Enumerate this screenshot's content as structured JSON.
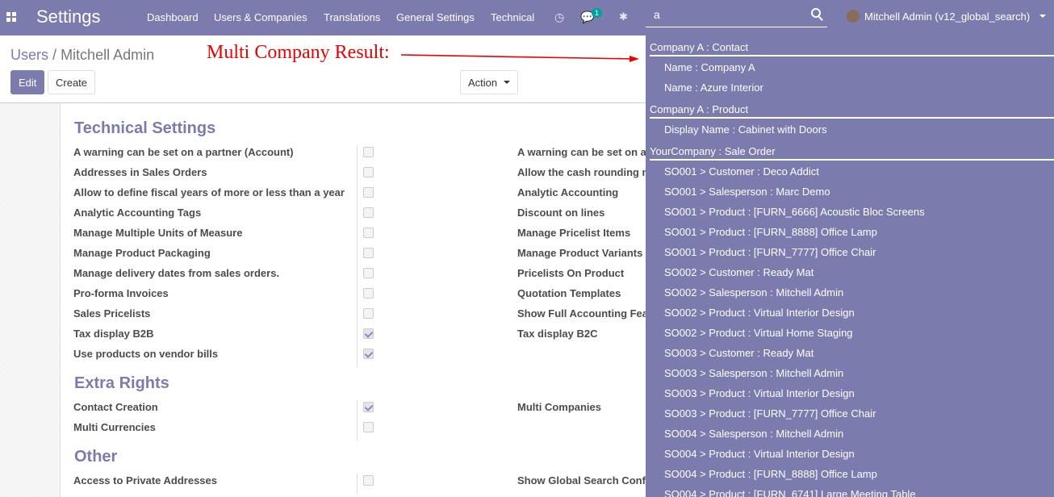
{
  "navbar": {
    "brand": "Settings",
    "menu": [
      "Dashboard",
      "Users & Companies",
      "Translations",
      "General Settings",
      "Technical"
    ],
    "message_count": "1",
    "search_value": "a",
    "user": "Mitchell Admin (v12_global_search)"
  },
  "breadcrumb": {
    "parent": "Users",
    "separator": "/",
    "current": "Mitchell Admin"
  },
  "annotation": "Multi Company Result:",
  "buttons": {
    "edit": "Edit",
    "create": "Create",
    "action": "Action"
  },
  "sections": [
    {
      "title": "Technical Settings",
      "left": [
        {
          "label": "A warning can be set on a partner (Account)",
          "checked": false
        },
        {
          "label": "Addresses in Sales Orders",
          "checked": false
        },
        {
          "label": "Allow to define fiscal years of more or less than a year",
          "checked": false
        },
        {
          "label": "Analytic Accounting Tags",
          "checked": false
        },
        {
          "label": "Manage Multiple Units of Measure",
          "checked": false
        },
        {
          "label": "Manage Product Packaging",
          "checked": false
        },
        {
          "label": "Manage delivery dates from sales orders.",
          "checked": false
        },
        {
          "label": "Pro-forma Invoices",
          "checked": false
        },
        {
          "label": "Sales Pricelists",
          "checked": false
        },
        {
          "label": "Tax display B2B",
          "checked": true
        },
        {
          "label": "Use products on vendor bills",
          "checked": true
        }
      ],
      "right": [
        "A warning can be set on a",
        "Allow the cash rounding m",
        "Analytic Accounting",
        "Discount on lines",
        "Manage Pricelist Items",
        "Manage Product Variants",
        "Pricelists On Product",
        "Quotation Templates",
        "Show Full Accounting Fea",
        "Tax display B2C"
      ]
    },
    {
      "title": "Extra Rights",
      "left": [
        {
          "label": "Contact Creation",
          "checked": true
        },
        {
          "label": "Multi Currencies",
          "checked": false
        }
      ],
      "right": [
        "Multi Companies"
      ]
    },
    {
      "title": "Other",
      "left": [
        {
          "label": "Access to Private Addresses",
          "checked": false
        }
      ],
      "right": [
        "Show Global Search Conf"
      ]
    }
  ],
  "search_results": [
    {
      "group": "Company A : Contact",
      "items": [
        "Name : Company A",
        "Name : Azure Interior"
      ]
    },
    {
      "group": "Company A : Product",
      "items": [
        "Display Name : Cabinet with Doors"
      ]
    },
    {
      "group": "YourCompany : Sale Order",
      "items": [
        "SO001 > Customer : Deco Addict",
        "SO001 > Salesperson : Marc Demo",
        "SO001 > Product : [FURN_6666] Acoustic Bloc Screens",
        "SO001 > Product : [FURN_8888] Office Lamp",
        "SO001 > Product : [FURN_7777] Office Chair",
        "SO002 > Customer : Ready Mat",
        "SO002 > Salesperson : Mitchell Admin",
        "SO002 > Product : Virtual Interior Design",
        "SO002 > Product : Virtual Home Staging",
        "SO003 > Customer : Ready Mat",
        "SO003 > Salesperson : Mitchell Admin",
        "SO003 > Product : Virtual Interior Design",
        "SO003 > Product : [FURN_7777] Office Chair",
        "SO004 > Salesperson : Mitchell Admin",
        "SO004 > Product : Virtual Interior Design",
        "SO004 > Product : [FURN_8888] Office Lamp",
        "SO004 > Product : [FURN_6741] Large Meeting Table"
      ]
    }
  ]
}
